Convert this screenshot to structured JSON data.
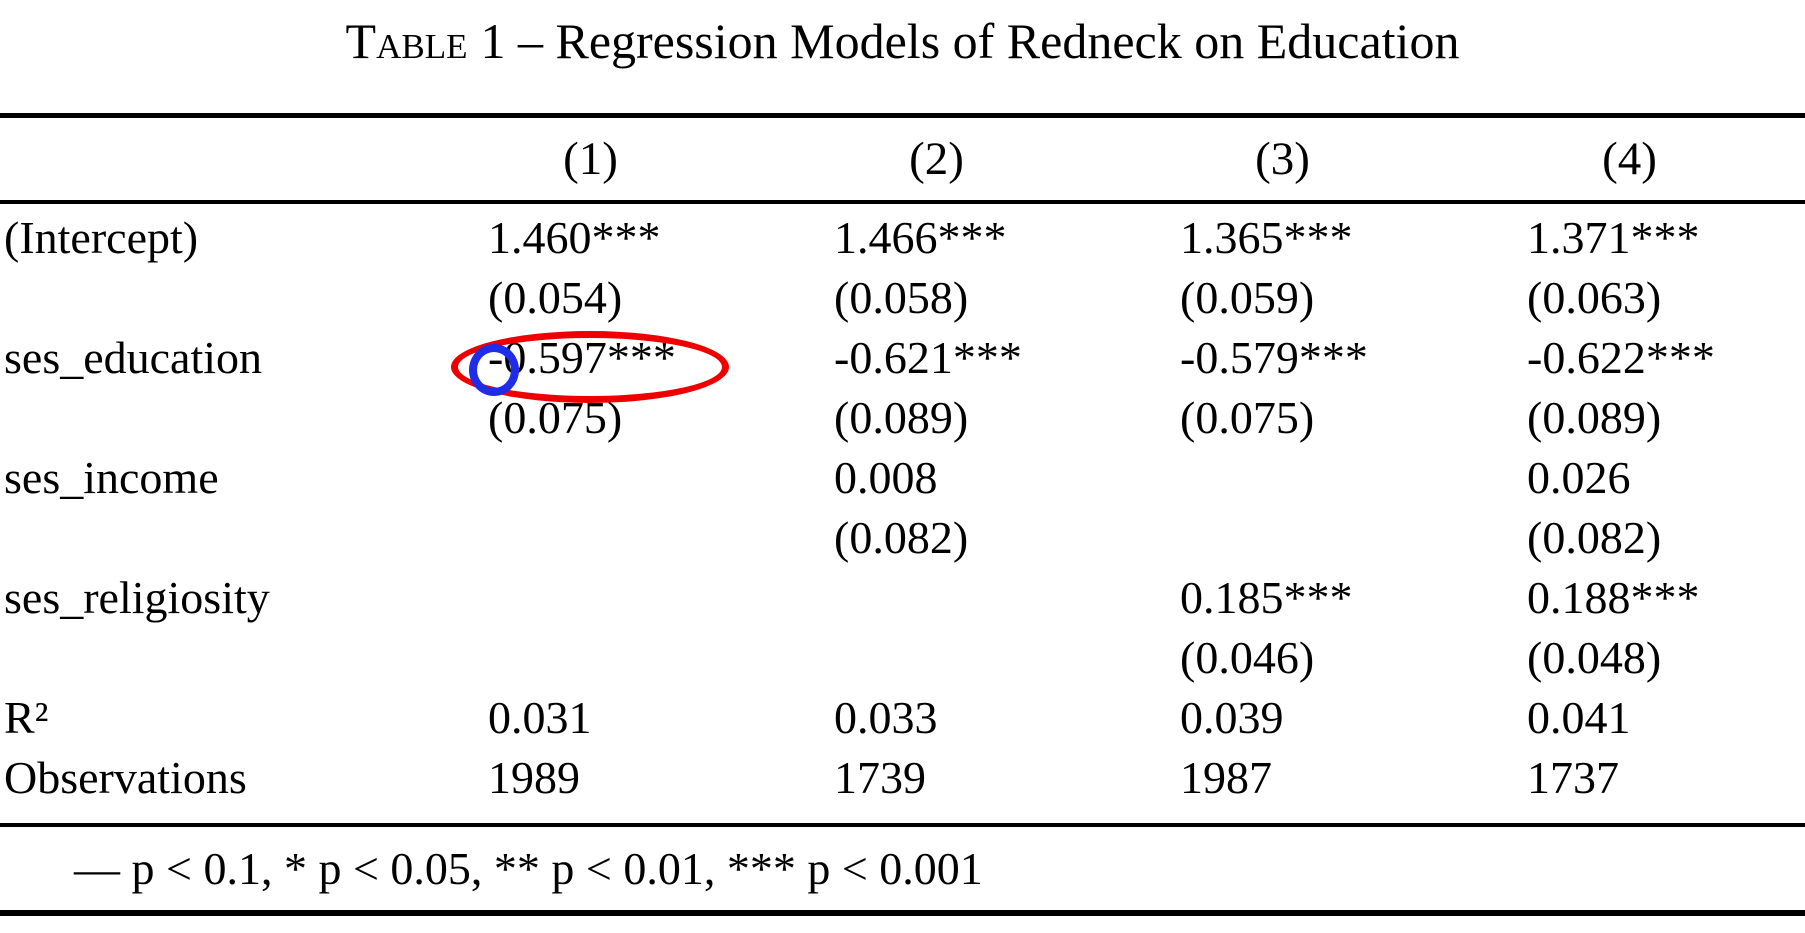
{
  "title": {
    "prefix": "Table",
    "rest": "1 – Regression Models of Redneck on Education"
  },
  "table": {
    "col_headers": [
      "(1)",
      "(2)",
      "(3)",
      "(4)"
    ],
    "rows": [
      {
        "label": "(Intercept)",
        "estimates": [
          "1.460***",
          "1.466***",
          "1.365***",
          "1.371***"
        ],
        "std_errors": [
          "(0.054)",
          "(0.058)",
          "(0.059)",
          "(0.063)"
        ]
      },
      {
        "label": "ses_education",
        "estimates": [
          "-0.597***",
          "-0.621***",
          "-0.579***",
          "-0.622***"
        ],
        "std_errors": [
          "(0.075)",
          "(0.089)",
          "(0.075)",
          "(0.089)"
        ]
      },
      {
        "label": "ses_income",
        "estimates": [
          "",
          "0.008",
          "",
          "0.026"
        ],
        "std_errors": [
          "",
          "(0.082)",
          "",
          "(0.082)"
        ]
      },
      {
        "label": "ses_religiosity",
        "estimates": [
          "",
          "",
          "0.185***",
          "0.188***"
        ],
        "std_errors": [
          "",
          "",
          "(0.046)",
          "(0.048)"
        ]
      }
    ],
    "stats": [
      {
        "label": "R²",
        "values": [
          "0.031",
          "0.033",
          "0.039",
          "0.041"
        ]
      },
      {
        "label": "Observations",
        "values": [
          "1989",
          "1739",
          "1987",
          "1737"
        ]
      }
    ],
    "note": "— p < 0.1, * p < 0.05, ** p < 0.01, *** p < 0.001"
  },
  "annotations": {
    "red_ellipse_target": "-0.597***",
    "red_color": "#ee0000",
    "blue_color": "#1f2ce8"
  }
}
